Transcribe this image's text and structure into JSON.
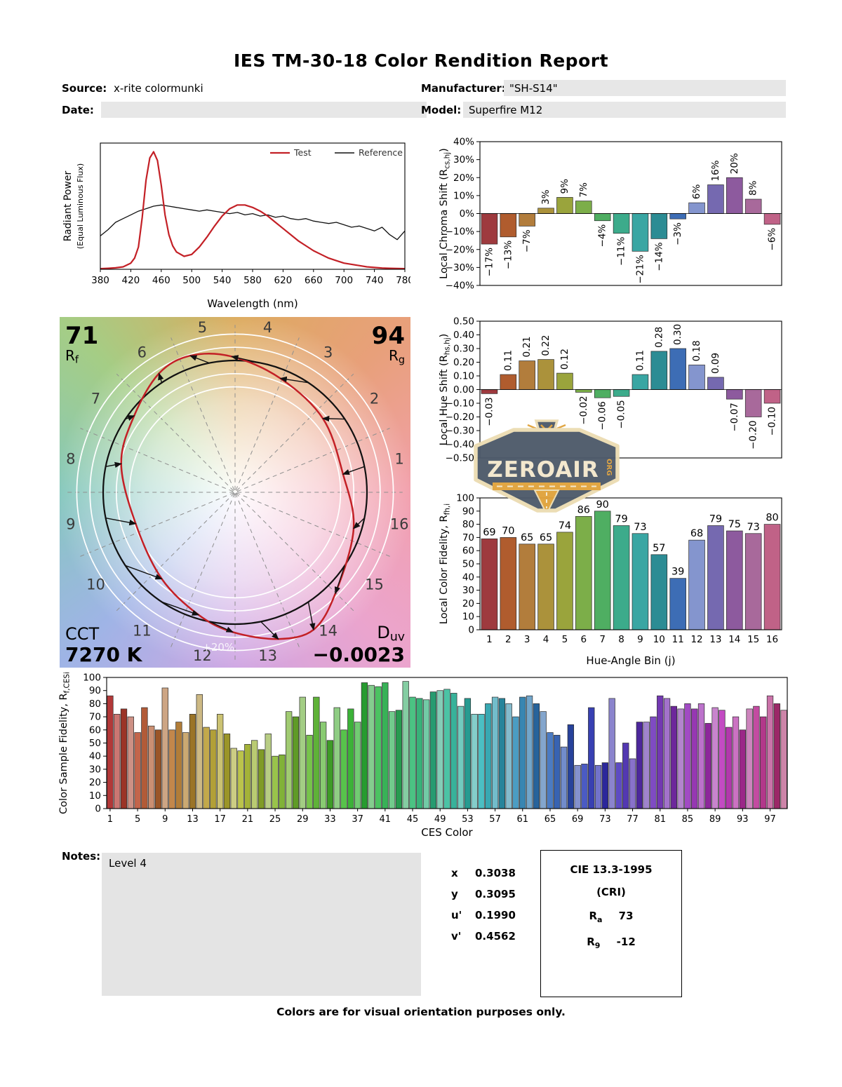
{
  "title": "IES TM-30-18 Color Rendition Report",
  "header": {
    "source_label": "Source:",
    "source_value": "x-rite colormunki",
    "manufacturer_label": "Manufacturer:",
    "manufacturer_value": "\"SH-S14\"",
    "date_label": "Date:",
    "date_value": "",
    "model_label": "Model:",
    "model_value": "Superfire M12"
  },
  "notes": {
    "label": "Notes:",
    "value": "Level 4"
  },
  "chromaticity": {
    "rows": [
      {
        "label": "x",
        "value": "0.3038"
      },
      {
        "label": "y",
        "value": "0.3095"
      },
      {
        "label": "u'",
        "value": "0.1990"
      },
      {
        "label": "v'",
        "value": "0.4562"
      }
    ]
  },
  "cri": {
    "title": "CIE 13.3-1995",
    "subtitle": "(CRI)",
    "rows": [
      {
        "base": "R",
        "sub": "a",
        "value": "73"
      },
      {
        "base": "R",
        "sub": "9",
        "value": "-12"
      }
    ]
  },
  "footer_note": "Colors are for visual orientation purposes only.",
  "watermark": {
    "text": "ZEROAIR",
    "suffix": "ORG"
  },
  "cvg": {
    "rf_value": "71",
    "rf_label": "R_{f}",
    "rg_value": "94",
    "rg_label": "R_{g}",
    "cct_label": "CCT",
    "cct_value": "7270 K",
    "duv_label": "D_{uv}",
    "duv_value": "−0.0023",
    "ring_label": "+20%"
  },
  "bin_colors": [
    "#9e3a3e",
    "#b05c2e",
    "#b27d3c",
    "#ab923b",
    "#9aa43c",
    "#7cae49",
    "#4fae62",
    "#3cab8b",
    "#39a6a3",
    "#2c8c94",
    "#3d6db5",
    "#8495ce",
    "#7569b0",
    "#8d5a9e",
    "#a8699b",
    "#c06287"
  ],
  "chart_data": [
    {
      "id": "spd",
      "type": "line",
      "xlabel": "Wavelength (nm)",
      "ylabel": "Radiant Power",
      "ylabel2": "(Equal Luminous Flux)",
      "xlim": [
        380,
        780
      ],
      "ylim": [
        0,
        1
      ],
      "xticks": [
        380,
        420,
        460,
        500,
        540,
        580,
        620,
        660,
        700,
        740,
        780
      ],
      "legend": [
        "Test",
        "Reference"
      ],
      "series": [
        {
          "name": "Test",
          "color": "#c32026",
          "width": 2.2,
          "x": [
            380,
            390,
            400,
            410,
            420,
            425,
            430,
            435,
            440,
            445,
            450,
            455,
            460,
            465,
            470,
            475,
            480,
            490,
            500,
            510,
            520,
            530,
            540,
            550,
            560,
            570,
            580,
            590,
            600,
            610,
            620,
            630,
            640,
            650,
            660,
            670,
            680,
            690,
            700,
            710,
            720,
            730,
            740,
            750,
            760,
            770,
            780
          ],
          "y": [
            0.005,
            0.008,
            0.012,
            0.02,
            0.05,
            0.09,
            0.18,
            0.42,
            0.72,
            0.9,
            0.95,
            0.88,
            0.68,
            0.44,
            0.28,
            0.19,
            0.14,
            0.105,
            0.12,
            0.18,
            0.26,
            0.35,
            0.43,
            0.49,
            0.52,
            0.52,
            0.5,
            0.47,
            0.43,
            0.38,
            0.33,
            0.28,
            0.23,
            0.19,
            0.15,
            0.12,
            0.09,
            0.07,
            0.05,
            0.04,
            0.03,
            0.02,
            0.015,
            0.01,
            0.008,
            0.006,
            0.005
          ]
        },
        {
          "name": "Reference",
          "color": "#111111",
          "width": 1.3,
          "x": [
            380,
            390,
            400,
            410,
            420,
            430,
            440,
            450,
            460,
            470,
            480,
            490,
            500,
            510,
            520,
            530,
            540,
            550,
            560,
            570,
            580,
            590,
            600,
            610,
            620,
            630,
            640,
            650,
            660,
            670,
            680,
            690,
            700,
            710,
            720,
            730,
            740,
            750,
            760,
            770,
            780
          ],
          "y": [
            0.27,
            0.32,
            0.38,
            0.41,
            0.44,
            0.47,
            0.49,
            0.51,
            0.52,
            0.51,
            0.5,
            0.49,
            0.48,
            0.47,
            0.48,
            0.47,
            0.46,
            0.45,
            0.46,
            0.44,
            0.45,
            0.43,
            0.44,
            0.42,
            0.43,
            0.41,
            0.4,
            0.41,
            0.39,
            0.38,
            0.37,
            0.38,
            0.36,
            0.34,
            0.35,
            0.33,
            0.31,
            0.34,
            0.28,
            0.24,
            0.31
          ]
        }
      ]
    },
    {
      "id": "chroma",
      "type": "bar",
      "ylabel": "Local Chroma Shift (R_{cs,hj})",
      "ylim": [
        -40,
        40
      ],
      "ystep": 10,
      "unit": "%",
      "categories": [
        1,
        2,
        3,
        4,
        5,
        6,
        7,
        8,
        9,
        10,
        11,
        12,
        13,
        14,
        15,
        16
      ],
      "values": [
        -17,
        -13,
        -7,
        3,
        9,
        7,
        -4,
        -11,
        -21,
        -14,
        -3,
        6,
        16,
        20,
        8,
        -6
      ]
    },
    {
      "id": "hue",
      "type": "bar",
      "ylabel": "Local Hue Shift (R_{hs,hj})",
      "ylim": [
        -0.5,
        0.5
      ],
      "ystep": 0.1,
      "categories": [
        1,
        2,
        3,
        4,
        5,
        6,
        7,
        8,
        9,
        10,
        11,
        12,
        13,
        14,
        15,
        16
      ],
      "values": [
        -0.03,
        0.11,
        0.21,
        0.22,
        0.12,
        -0.02,
        -0.06,
        -0.05,
        0.11,
        0.28,
        0.3,
        0.18,
        0.09,
        -0.07,
        -0.2,
        -0.1
      ]
    },
    {
      "id": "fid",
      "type": "bar",
      "ylabel": "Local Color Fidelity, R_{fh,i}",
      "xlabel": "Hue-Angle Bin (j)",
      "ylim": [
        0,
        100
      ],
      "ystep": 10,
      "categories": [
        1,
        2,
        3,
        4,
        5,
        6,
        7,
        8,
        9,
        10,
        11,
        12,
        13,
        14,
        15,
        16
      ],
      "values": [
        69,
        70,
        65,
        65,
        74,
        86,
        90,
        79,
        73,
        57,
        39,
        68,
        79,
        75,
        73,
        80
      ]
    },
    {
      "id": "ces",
      "type": "bar",
      "ylabel": "Color Sample Fidelity, R_{f,CESi}",
      "xlabel": "CES Color",
      "ylim": [
        0,
        100
      ],
      "ystep": 10,
      "xticks": [
        1,
        5,
        9,
        13,
        17,
        21,
        25,
        29,
        33,
        37,
        41,
        45,
        49,
        53,
        57,
        61,
        65,
        69,
        73,
        77,
        81,
        85,
        89,
        93,
        97
      ],
      "values": [
        86,
        72,
        76,
        70,
        58,
        77,
        63,
        60,
        92,
        60,
        66,
        58,
        72,
        87,
        62,
        60,
        72,
        57,
        46,
        44,
        49,
        52,
        45,
        57,
        40,
        41,
        74,
        70,
        85,
        56,
        85,
        66,
        52,
        77,
        60,
        76,
        66,
        96,
        94,
        93,
        96,
        74,
        75,
        97,
        85,
        84,
        83,
        89,
        90,
        91,
        88,
        78,
        84,
        72,
        72,
        80,
        85,
        84,
        80,
        70,
        85,
        86,
        80,
        74,
        58,
        56,
        47,
        64,
        33,
        34,
        77,
        33,
        35,
        84,
        35,
        50,
        38,
        66,
        66,
        70,
        86,
        84,
        78,
        76,
        80,
        76,
        80,
        65,
        77,
        75,
        62,
        70,
        60,
        76,
        78,
        70,
        86,
        80,
        75
      ]
    }
  ]
}
